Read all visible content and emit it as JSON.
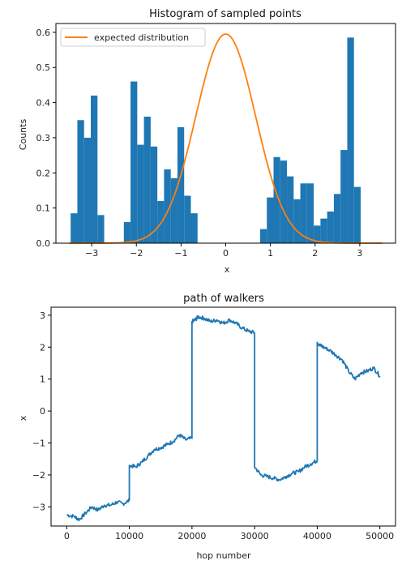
{
  "chart_data": [
    {
      "type": "bar",
      "title": "Histogram of sampled points",
      "xlabel": "x",
      "ylabel": "Counts",
      "xlim": [
        -3.8,
        3.8
      ],
      "ylim": [
        0,
        0.625
      ],
      "xticks": [
        -3,
        -2,
        -1,
        0,
        1,
        2,
        3
      ],
      "yticks": [
        0.0,
        0.1,
        0.2,
        0.3,
        0.4,
        0.5,
        0.6
      ],
      "xtick_labels": [
        "−3",
        "−2",
        "−1",
        "0",
        "1",
        "2",
        "3"
      ],
      "ytick_labels": [
        "0.0",
        "0.1",
        "0.2",
        "0.3",
        "0.4",
        "0.5",
        "0.6"
      ],
      "legend": {
        "entries": [
          "expected distribution"
        ],
        "placement": "top-left"
      },
      "bar_color": "#1f77b4",
      "line_color": "#ff7f0e",
      "bins": [
        {
          "x0": -3.47,
          "x1": -3.32,
          "value": 0.085
        },
        {
          "x0": -3.32,
          "x1": -3.17,
          "value": 0.35
        },
        {
          "x0": -3.17,
          "x1": -3.02,
          "value": 0.3
        },
        {
          "x0": -3.02,
          "x1": -2.87,
          "value": 0.42
        },
        {
          "x0": -2.87,
          "x1": -2.72,
          "value": 0.08
        },
        {
          "x0": -2.28,
          "x1": -2.13,
          "value": 0.06
        },
        {
          "x0": -2.13,
          "x1": -1.98,
          "value": 0.46
        },
        {
          "x0": -1.98,
          "x1": -1.83,
          "value": 0.28
        },
        {
          "x0": -1.83,
          "x1": -1.68,
          "value": 0.36
        },
        {
          "x0": -1.68,
          "x1": -1.53,
          "value": 0.275
        },
        {
          "x0": -1.53,
          "x1": -1.38,
          "value": 0.12
        },
        {
          "x0": -1.38,
          "x1": -1.23,
          "value": 0.21
        },
        {
          "x0": -1.23,
          "x1": -1.08,
          "value": 0.185
        },
        {
          "x0": -1.08,
          "x1": -0.93,
          "value": 0.33
        },
        {
          "x0": -0.93,
          "x1": -0.78,
          "value": 0.135
        },
        {
          "x0": -0.78,
          "x1": -0.63,
          "value": 0.085
        },
        {
          "x0": 0.77,
          "x1": 0.92,
          "value": 0.04
        },
        {
          "x0": 0.92,
          "x1": 1.07,
          "value": 0.13
        },
        {
          "x0": 1.07,
          "x1": 1.22,
          "value": 0.245
        },
        {
          "x0": 1.22,
          "x1": 1.37,
          "value": 0.235
        },
        {
          "x0": 1.37,
          "x1": 1.52,
          "value": 0.19
        },
        {
          "x0": 1.52,
          "x1": 1.67,
          "value": 0.125
        },
        {
          "x0": 1.67,
          "x1": 1.82,
          "value": 0.17
        },
        {
          "x0": 1.82,
          "x1": 1.97,
          "value": 0.17
        },
        {
          "x0": 1.97,
          "x1": 2.12,
          "value": 0.05
        },
        {
          "x0": 2.12,
          "x1": 2.27,
          "value": 0.07
        },
        {
          "x0": 2.27,
          "x1": 2.42,
          "value": 0.09
        },
        {
          "x0": 2.42,
          "x1": 2.57,
          "value": 0.14
        },
        {
          "x0": 2.57,
          "x1": 2.72,
          "value": 0.265
        },
        {
          "x0": 2.72,
          "x1": 2.87,
          "value": 0.585
        },
        {
          "x0": 2.87,
          "x1": 3.02,
          "value": 0.16
        }
      ],
      "series": [
        {
          "name": "expected distribution",
          "kind": "normal-curve",
          "peak": 0.595,
          "mean": 0,
          "sigma": 0.67,
          "x_range": [
            -3.5,
            3.5
          ]
        }
      ]
    },
    {
      "type": "line",
      "title": "path of walkers",
      "xlabel": "hop number",
      "ylabel": "x",
      "xlim": [
        -2500,
        52500
      ],
      "ylim": [
        -3.6,
        3.25
      ],
      "xticks": [
        0,
        10000,
        20000,
        30000,
        40000,
        50000
      ],
      "yticks": [
        -3,
        -2,
        -1,
        0,
        1,
        2,
        3
      ],
      "xtick_labels": [
        "0",
        "10000",
        "20000",
        "30000",
        "40000",
        "50000"
      ],
      "ytick_labels": [
        "−3",
        "−2",
        "−1",
        "0",
        "1",
        "2",
        "3"
      ],
      "line_color": "#1f77b4",
      "series": [
        {
          "x": [
            0,
            1200,
            2000,
            3000,
            4000,
            5000,
            6000,
            7000,
            8000,
            9000,
            9999,
            10000,
            11000,
            12000,
            13000,
            14000,
            15000,
            16000,
            17000,
            18000,
            19000,
            19999,
            20000,
            20500,
            21000,
            22000,
            23000,
            24000,
            25000,
            26000,
            27000,
            28000,
            29000,
            29999,
            30000,
            31000,
            32000,
            33000,
            34000,
            35000,
            36000,
            37000,
            38000,
            39000,
            39999,
            40000,
            40500,
            41000,
            42000,
            43000,
            44000,
            45000,
            46000,
            47000,
            48000,
            49000,
            50000
          ],
          "y": [
            -3.25,
            -3.3,
            -3.4,
            -3.2,
            -3.0,
            -3.1,
            -2.95,
            -2.95,
            -2.85,
            -2.9,
            -2.8,
            -1.7,
            -1.75,
            -1.6,
            -1.4,
            -1.2,
            -1.15,
            -1.05,
            -0.95,
            -0.75,
            -0.9,
            -0.85,
            2.8,
            2.85,
            2.95,
            2.9,
            2.8,
            2.85,
            2.75,
            2.85,
            2.75,
            2.6,
            2.5,
            2.45,
            -1.75,
            -2.0,
            -2.05,
            -2.1,
            -2.15,
            -2.05,
            -1.95,
            -1.9,
            -1.75,
            -1.65,
            -1.55,
            2.15,
            2.05,
            2.0,
            1.9,
            1.75,
            1.6,
            1.25,
            1.0,
            1.2,
            1.25,
            1.35,
            1.1
          ]
        }
      ]
    }
  ]
}
